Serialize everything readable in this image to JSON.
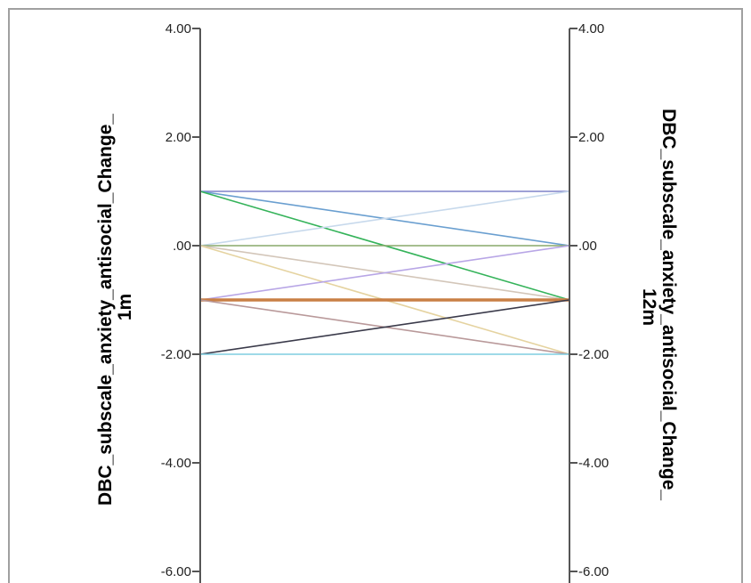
{
  "chart_data": {
    "type": "line",
    "subtype": "parallel-coordinates",
    "left_axis": {
      "label_line1": "DBC_subscale_anxiety_antisocial_Change_",
      "label_line2": "1m",
      "ticks": [
        "4.00",
        "2.00",
        ".00",
        "-2.00",
        "-4.00",
        "-6.00"
      ],
      "tick_values": [
        4,
        2,
        0,
        -2,
        -4,
        -6
      ],
      "range": [
        -6,
        4
      ]
    },
    "right_axis": {
      "label_line1": "DBC_subscale_anxiety_antisocial_Change_",
      "label_line2": "12m",
      "ticks": [
        "4.00",
        "2.00",
        ".00",
        "-2.00",
        "-4.00",
        "-6.00"
      ],
      "tick_values": [
        4,
        2,
        0,
        -2,
        -4,
        -6
      ],
      "range": [
        -6,
        4
      ]
    },
    "connections": [
      {
        "from": 1,
        "to": 1,
        "color": "#7f82c9"
      },
      {
        "from": 1,
        "to": 0,
        "color": "#6a9fd0"
      },
      {
        "from": 1,
        "to": -1,
        "color": "#35b35a"
      },
      {
        "from": 0,
        "to": 1,
        "color": "#c7d9ec"
      },
      {
        "from": 0,
        "to": 0,
        "color": "#88a96a"
      },
      {
        "from": 0,
        "to": -1,
        "color": "#d3c6b9"
      },
      {
        "from": 0,
        "to": -2,
        "color": "#e5d3a0"
      },
      {
        "from": -1,
        "to": 0,
        "color": "#b8a6e6"
      },
      {
        "from": -1,
        "to": -1,
        "color": "#c97f45"
      },
      {
        "from": -1,
        "to": -2,
        "color": "#b9999a"
      },
      {
        "from": -2,
        "to": -1,
        "color": "#3a3a4a"
      },
      {
        "from": -2,
        "to": -2,
        "color": "#7ecde0"
      }
    ],
    "plot_background": "#ffffff",
    "frame_color": "#a0a0a0",
    "axis_color": "#555555",
    "grid": false
  }
}
